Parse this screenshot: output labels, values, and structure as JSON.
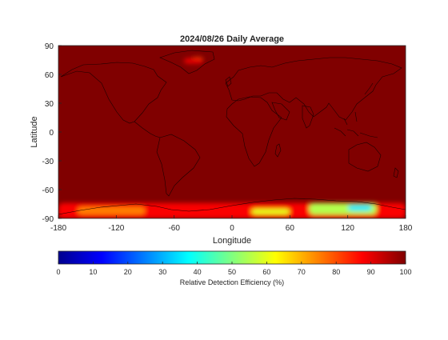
{
  "chart_data": {
    "type": "heatmap",
    "title": "2024/08/26 Daily Average",
    "xlabel": "Longitude",
    "ylabel": "Latitude",
    "xlim": [
      -180,
      180
    ],
    "ylim": [
      -90,
      90
    ],
    "xticks": [
      -180,
      -120,
      -60,
      0,
      60,
      120,
      180
    ],
    "yticks": [
      90,
      60,
      30,
      0,
      -30,
      -60,
      -90
    ],
    "background_value": 100,
    "field": [
      {
        "lon": [
          -30,
          -50
        ],
        "lat": [
          71,
          77
        ],
        "value": 90
      },
      {
        "lon": [
          -42,
          -30
        ],
        "lat": [
          75,
          78
        ],
        "value": 80
      },
      {
        "lon": [
          120,
          145
        ],
        "lat": [
          -82,
          -76
        ],
        "value": 35
      },
      {
        "lon": [
          125,
          142
        ],
        "lat": [
          -80,
          -77
        ],
        "value": 25
      },
      {
        "lon": [
          80,
          150
        ],
        "lat": [
          -86,
          -74
        ],
        "value": 55
      },
      {
        "lon": [
          20,
          60
        ],
        "lat": [
          -86,
          -80
        ],
        "value": 60
      },
      {
        "lon": [
          -160,
          -90
        ],
        "lat": [
          -86,
          -78
        ],
        "value": 75
      },
      {
        "lon": [
          -120,
          -110
        ],
        "lat": [
          -83,
          -80
        ],
        "value": 60
      },
      {
        "lon": [
          -180,
          180
        ],
        "lat": [
          -90,
          -74
        ],
        "value": 88
      }
    ],
    "colorbar": {
      "label": "Relative Detection Efficiency (%)",
      "range": [
        0,
        100
      ],
      "ticks": [
        0,
        10,
        20,
        30,
        40,
        50,
        60,
        70,
        80,
        90,
        100
      ],
      "colormap": "jet"
    }
  }
}
